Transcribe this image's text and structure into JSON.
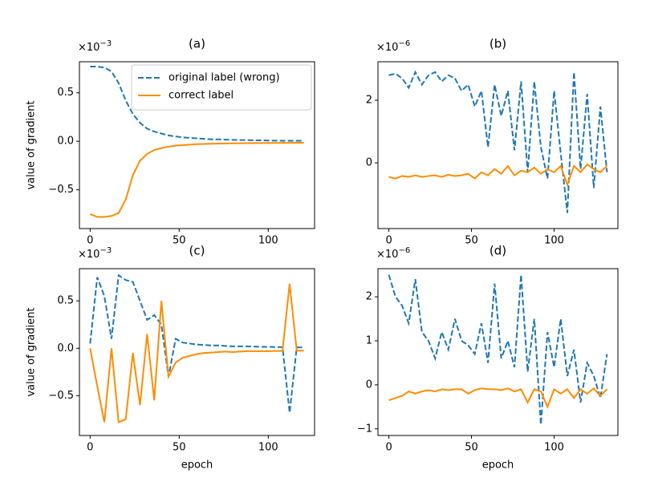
{
  "chart_data": [
    {
      "type": "line",
      "title": "(a)",
      "ylabel": "value of gradient",
      "offset_text": {
        "base": "×10",
        "exponent": "−3"
      },
      "x": [
        0,
        4,
        8,
        12,
        16,
        20,
        24,
        28,
        32,
        36,
        40,
        44,
        48,
        52,
        56,
        60,
        64,
        68,
        72,
        76,
        80,
        84,
        88,
        92,
        96,
        100,
        104,
        108,
        112,
        116,
        120
      ],
      "xlim": [
        -6,
        126
      ],
      "xticks": [
        0,
        50,
        100
      ],
      "ylim": [
        -0.9,
        0.82
      ],
      "yticks": [
        0.5,
        {
          "value": 0,
          "label": "0.0"
        },
        {
          "value": -0.5,
          "label": "−0.5"
        }
      ],
      "legend": "upper right",
      "series": [
        {
          "name": "original label (wrong)",
          "color": "#1f77b4",
          "linestyle": "dashed",
          "values": [
            0.77,
            0.77,
            0.76,
            0.72,
            0.6,
            0.42,
            0.28,
            0.19,
            0.13,
            0.1,
            0.08,
            0.06,
            0.05,
            0.04,
            0.035,
            0.03,
            0.025,
            0.02,
            0.02,
            0.017,
            0.015,
            0.013,
            0.012,
            0.01,
            0.01,
            0.008,
            0.007,
            0.006,
            0.005,
            0.005,
            0.005
          ]
        },
        {
          "name": "correct label",
          "color": "#ff8c00",
          "linestyle": "solid",
          "values": [
            -0.75,
            -0.78,
            -0.78,
            -0.77,
            -0.74,
            -0.6,
            -0.35,
            -0.2,
            -0.13,
            -0.09,
            -0.07,
            -0.055,
            -0.045,
            -0.04,
            -0.035,
            -0.03,
            -0.028,
            -0.025,
            -0.023,
            -0.022,
            -0.02,
            -0.02,
            -0.019,
            -0.018,
            -0.018,
            -0.017,
            -0.017,
            -0.016,
            -0.016,
            -0.015,
            -0.015
          ]
        }
      ]
    },
    {
      "type": "line",
      "title": "(b)",
      "offset_text": {
        "base": "×10",
        "exponent": "−6"
      },
      "x": [
        0,
        4,
        8,
        12,
        16,
        20,
        24,
        28,
        32,
        36,
        40,
        44,
        48,
        52,
        56,
        60,
        64,
        68,
        72,
        76,
        80,
        84,
        88,
        92,
        96,
        100,
        104,
        108,
        112,
        116,
        120,
        124,
        128,
        132
      ],
      "xlim": [
        -6.6,
        138.6
      ],
      "xticks": [
        0,
        50,
        100
      ],
      "ylim": [
        -2.1,
        3.23
      ],
      "yticks": [
        2,
        0
      ],
      "series": [
        {
          "color": "#1f77b4",
          "linestyle": "dashed",
          "values": [
            2.8,
            2.85,
            2.7,
            2.4,
            2.9,
            2.5,
            2.8,
            2.9,
            2.6,
            2.8,
            2.7,
            2.3,
            2.5,
            1.8,
            2.3,
            0.5,
            2.5,
            1.5,
            2.3,
            0.4,
            2.6,
            -0.3,
            2.6,
            0.5,
            -0.5,
            2.3,
            0.3,
            -1.6,
            2.9,
            -0.2,
            2.2,
            -0.8,
            1.8,
            -0.3
          ]
        },
        {
          "color": "#ff8c00",
          "linestyle": "solid",
          "values": [
            -0.45,
            -0.5,
            -0.42,
            -0.45,
            -0.4,
            -0.45,
            -0.42,
            -0.4,
            -0.45,
            -0.38,
            -0.42,
            -0.4,
            -0.35,
            -0.5,
            -0.3,
            -0.4,
            -0.2,
            -0.35,
            -0.1,
            -0.4,
            -0.25,
            -0.3,
            -0.15,
            -0.35,
            -0.2,
            -0.3,
            -0.1,
            -0.7,
            -0.1,
            -0.3,
            -0.05,
            -0.2,
            -0.3,
            -0.1
          ]
        }
      ]
    },
    {
      "type": "line",
      "title": "(c)",
      "ylabel": "value of gradient",
      "xlabel": "epoch",
      "offset_text": {
        "base": "×10",
        "exponent": "−3"
      },
      "x": [
        0,
        4,
        8,
        12,
        16,
        20,
        24,
        28,
        32,
        36,
        40,
        44,
        48,
        52,
        56,
        60,
        64,
        68,
        72,
        76,
        80,
        84,
        88,
        92,
        96,
        100,
        104,
        108,
        112,
        116,
        120
      ],
      "xlim": [
        -6,
        126
      ],
      "xticks": [
        0,
        50,
        100
      ],
      "ylim": [
        -0.92,
        0.84
      ],
      "yticks": [
        0.5,
        {
          "value": 0,
          "label": "0.0"
        },
        {
          "value": -0.5,
          "label": "−0.5"
        }
      ],
      "series": [
        {
          "color": "#1f77b4",
          "linestyle": "dashed",
          "values": [
            0.05,
            0.75,
            0.55,
            0.1,
            0.77,
            0.72,
            0.7,
            0.5,
            0.3,
            0.35,
            0.25,
            -0.3,
            0.1,
            0.06,
            0.05,
            0.04,
            0.035,
            0.03,
            0.03,
            0.025,
            0.02,
            0.02,
            0.02,
            0.018,
            0.015,
            0.015,
            0.013,
            0.012,
            -0.68,
            0.01,
            0.01
          ]
        },
        {
          "color": "#ff8c00",
          "linestyle": "solid",
          "values": [
            0,
            -0.4,
            -0.78,
            0,
            -0.78,
            -0.75,
            -0.05,
            -0.6,
            0.15,
            -0.55,
            0.5,
            -0.3,
            -0.15,
            -0.1,
            -0.08,
            -0.06,
            -0.05,
            -0.045,
            -0.04,
            -0.035,
            -0.04,
            -0.035,
            -0.03,
            -0.03,
            -0.03,
            -0.03,
            -0.028,
            -0.027,
            0.68,
            -0.025,
            -0.025
          ]
        }
      ]
    },
    {
      "type": "line",
      "title": "(d)",
      "xlabel": "epoch",
      "offset_text": {
        "base": "×10",
        "exponent": "−6"
      },
      "x": [
        0,
        4,
        8,
        12,
        16,
        20,
        24,
        28,
        32,
        36,
        40,
        44,
        48,
        52,
        56,
        60,
        64,
        68,
        72,
        76,
        80,
        84,
        88,
        92,
        96,
        100,
        104,
        108,
        112,
        116,
        120,
        124,
        128,
        132
      ],
      "xlim": [
        -6.6,
        138.6
      ],
      "xticks": [
        0,
        50,
        100
      ],
      "ylim": [
        -1.15,
        2.64
      ],
      "yticks": [
        2,
        1,
        0,
        {
          "value": -1,
          "label": "−1"
        }
      ],
      "series": [
        {
          "color": "#1f77b4",
          "linestyle": "dashed",
          "values": [
            2.5,
            2.0,
            1.8,
            1.4,
            2.4,
            1.2,
            1.0,
            0.6,
            1.2,
            0.8,
            1.5,
            1.0,
            0.9,
            0.7,
            1.4,
            0.5,
            2.3,
            0.6,
            1.0,
            0.4,
            2.5,
            0.3,
            1.5,
            -0.9,
            1.2,
            0.4,
            1.5,
            0.2,
            0.8,
            -0.4,
            0.5,
            0.2,
            -0.3,
            0.7
          ]
        },
        {
          "color": "#ff8c00",
          "linestyle": "solid",
          "values": [
            -0.35,
            -0.3,
            -0.25,
            -0.15,
            -0.2,
            -0.15,
            -0.12,
            -0.15,
            -0.1,
            -0.12,
            -0.1,
            -0.1,
            -0.2,
            -0.12,
            -0.08,
            -0.1,
            -0.1,
            -0.12,
            -0.08,
            -0.15,
            -0.1,
            -0.4,
            -0.1,
            -0.15,
            -0.5,
            -0.1,
            -0.2,
            -0.1,
            -0.3,
            -0.1,
            -0.2,
            -0.08,
            -0.25,
            -0.1
          ]
        }
      ]
    }
  ]
}
